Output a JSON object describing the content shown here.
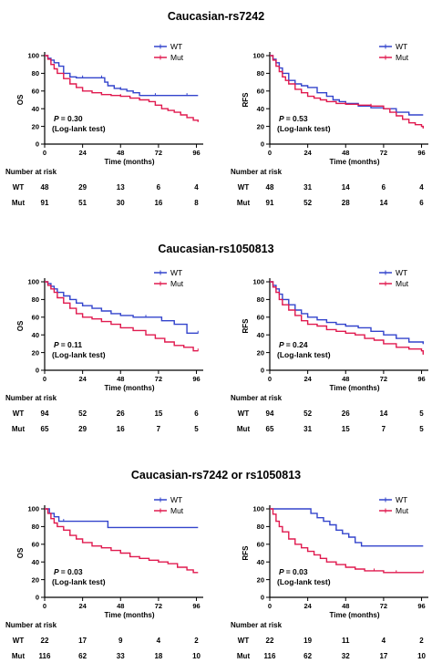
{
  "sections": [
    {
      "title": "Caucasian-rs7242"
    },
    {
      "title": "Caucasian-rs1050813"
    },
    {
      "title": "Caucasian-rs7242 or rs1050813"
    }
  ],
  "labels": {
    "p_label": "P",
    "test_label": "(Log-lank test)",
    "number_at_risk": "Number at risk",
    "wt": "WT",
    "mut": "Mut"
  },
  "colors": {
    "wt": "#3344cc",
    "mut": "#e01a4f"
  },
  "chart_data": [
    {
      "type": "line",
      "section": 0,
      "ylabel": "OS",
      "xlabel": "Time (months)",
      "xticks": [
        0,
        24,
        48,
        72,
        96
      ],
      "yticks": [
        0,
        20,
        40,
        60,
        80,
        100
      ],
      "xlim": [
        0,
        98
      ],
      "ylim": [
        0,
        100
      ],
      "p_value": "= 0.30",
      "legend_position": "top-right",
      "series": [
        {
          "name": "WT",
          "x": [
            0,
            2,
            4,
            6,
            9,
            12,
            16,
            20,
            24,
            30,
            36,
            38,
            40,
            44,
            48,
            52,
            56,
            60,
            70,
            80,
            90,
            97
          ],
          "y": [
            100,
            97,
            95,
            92,
            88,
            80,
            76,
            75,
            75,
            75,
            75,
            70,
            66,
            63,
            62,
            60,
            58,
            55,
            55,
            55,
            55,
            55
          ]
        },
        {
          "name": "Mut",
          "x": [
            0,
            2,
            4,
            6,
            8,
            12,
            16,
            20,
            24,
            30,
            36,
            42,
            48,
            54,
            60,
            66,
            70,
            74,
            78,
            82,
            86,
            90,
            94,
            97
          ],
          "y": [
            100,
            96,
            90,
            85,
            80,
            74,
            68,
            64,
            60,
            58,
            56,
            55,
            54,
            52,
            50,
            48,
            44,
            40,
            38,
            36,
            33,
            30,
            27,
            25
          ]
        }
      ],
      "risk_table": {
        "times": [
          0,
          24,
          48,
          72,
          96
        ],
        "WT": [
          48,
          29,
          13,
          6,
          4
        ],
        "Mut": [
          91,
          51,
          30,
          16,
          8
        ]
      }
    },
    {
      "type": "line",
      "section": 0,
      "ylabel": "RFS",
      "xlabel": "Time (months)",
      "xticks": [
        0,
        24,
        48,
        72,
        96
      ],
      "yticks": [
        0,
        20,
        40,
        60,
        80,
        100
      ],
      "xlim": [
        0,
        98
      ],
      "ylim": [
        0,
        100
      ],
      "p_value": "= 0.53",
      "legend_position": "top-right",
      "series": [
        {
          "name": "WT",
          "x": [
            0,
            2,
            4,
            6,
            8,
            12,
            16,
            20,
            24,
            30,
            36,
            40,
            44,
            48,
            56,
            64,
            72,
            80,
            88,
            97
          ],
          "y": [
            100,
            96,
            92,
            86,
            80,
            72,
            68,
            66,
            64,
            58,
            54,
            50,
            48,
            46,
            43,
            41,
            40,
            36,
            33,
            33
          ]
        },
        {
          "name": "Mut",
          "x": [
            0,
            2,
            4,
            6,
            8,
            10,
            12,
            16,
            20,
            24,
            28,
            32,
            36,
            42,
            48,
            56,
            64,
            72,
            76,
            80,
            84,
            88,
            92,
            96,
            97
          ],
          "y": [
            100,
            95,
            88,
            82,
            76,
            72,
            68,
            62,
            58,
            54,
            52,
            50,
            48,
            46,
            45,
            44,
            43,
            40,
            36,
            32,
            28,
            24,
            22,
            20,
            18
          ]
        }
      ],
      "risk_table": {
        "times": [
          0,
          24,
          48,
          72,
          96
        ],
        "WT": [
          48,
          31,
          14,
          6,
          4
        ],
        "Mut": [
          91,
          52,
          28,
          14,
          6
        ]
      }
    },
    {
      "type": "line",
      "section": 1,
      "ylabel": "OS",
      "xlabel": "Time (months)",
      "xticks": [
        0,
        24,
        48,
        72,
        96
      ],
      "yticks": [
        0,
        20,
        40,
        60,
        80,
        100
      ],
      "xlim": [
        0,
        98
      ],
      "ylim": [
        0,
        100
      ],
      "p_value": "= 0.11",
      "legend_position": "top-right",
      "series": [
        {
          "name": "WT",
          "x": [
            0,
            2,
            4,
            6,
            8,
            12,
            16,
            20,
            24,
            30,
            36,
            42,
            48,
            56,
            64,
            74,
            82,
            90,
            97
          ],
          "y": [
            100,
            98,
            95,
            92,
            88,
            84,
            80,
            76,
            73,
            70,
            67,
            64,
            62,
            60,
            60,
            56,
            52,
            42,
            42
          ]
        },
        {
          "name": "Mut",
          "x": [
            0,
            2,
            4,
            6,
            8,
            12,
            16,
            20,
            24,
            30,
            36,
            42,
            48,
            56,
            64,
            70,
            76,
            82,
            88,
            94,
            97
          ],
          "y": [
            100,
            96,
            92,
            88,
            82,
            76,
            70,
            64,
            60,
            58,
            55,
            52,
            48,
            45,
            40,
            36,
            32,
            28,
            26,
            22,
            22
          ]
        }
      ],
      "risk_table": {
        "times": [
          0,
          24,
          48,
          72,
          96
        ],
        "WT": [
          94,
          52,
          26,
          15,
          6
        ],
        "Mut": [
          65,
          29,
          16,
          7,
          5
        ]
      }
    },
    {
      "type": "line",
      "section": 1,
      "ylabel": "RFS",
      "xlabel": "Time (months)",
      "xticks": [
        0,
        24,
        48,
        72,
        96
      ],
      "yticks": [
        0,
        20,
        40,
        60,
        80,
        100
      ],
      "xlim": [
        0,
        98
      ],
      "ylim": [
        0,
        100
      ],
      "p_value": "= 0.24",
      "legend_position": "top-right",
      "series": [
        {
          "name": "WT",
          "x": [
            0,
            2,
            4,
            6,
            8,
            12,
            16,
            20,
            24,
            30,
            36,
            42,
            48,
            56,
            64,
            72,
            80,
            88,
            97
          ],
          "y": [
            100,
            96,
            92,
            86,
            80,
            74,
            68,
            64,
            60,
            57,
            54,
            52,
            50,
            48,
            44,
            40,
            36,
            32,
            30
          ]
        },
        {
          "name": "Mut",
          "x": [
            0,
            2,
            4,
            6,
            8,
            12,
            16,
            20,
            24,
            30,
            36,
            42,
            48,
            54,
            60,
            66,
            72,
            80,
            88,
            96,
            97
          ],
          "y": [
            100,
            94,
            88,
            80,
            74,
            68,
            62,
            56,
            52,
            50,
            46,
            44,
            42,
            40,
            36,
            34,
            30,
            26,
            24,
            22,
            18
          ]
        }
      ],
      "risk_table": {
        "times": [
          0,
          24,
          48,
          72,
          96
        ],
        "WT": [
          94,
          52,
          26,
          14,
          5
        ],
        "Mut": [
          65,
          31,
          15,
          7,
          5
        ]
      }
    },
    {
      "type": "line",
      "section": 2,
      "ylabel": "OS",
      "xlabel": "Time (months)",
      "xticks": [
        0,
        24,
        48,
        72,
        96
      ],
      "yticks": [
        0,
        20,
        40,
        60,
        80,
        100
      ],
      "xlim": [
        0,
        98
      ],
      "ylim": [
        0,
        100
      ],
      "p_value": "= 0.03",
      "legend_position": "top-right",
      "series": [
        {
          "name": "WT",
          "x": [
            0,
            3,
            6,
            9,
            12,
            36,
            40,
            97
          ],
          "y": [
            100,
            95,
            91,
            86,
            86,
            86,
            79,
            79
          ]
        },
        {
          "name": "Mut",
          "x": [
            0,
            2,
            4,
            6,
            8,
            12,
            16,
            20,
            24,
            30,
            36,
            42,
            48,
            54,
            60,
            66,
            72,
            78,
            84,
            90,
            94,
            97
          ],
          "y": [
            100,
            95,
            89,
            84,
            80,
            76,
            70,
            66,
            62,
            58,
            56,
            53,
            50,
            46,
            44,
            42,
            40,
            38,
            34,
            31,
            28,
            28
          ]
        }
      ],
      "risk_table": {
        "times": [
          0,
          24,
          48,
          72,
          96
        ],
        "WT": [
          22,
          17,
          9,
          4,
          2
        ],
        "Mut": [
          116,
          62,
          33,
          18,
          10
        ]
      }
    },
    {
      "type": "line",
      "section": 2,
      "ylabel": "RFS",
      "xlabel": "Time (months)",
      "xticks": [
        0,
        24,
        48,
        72,
        96
      ],
      "yticks": [
        0,
        20,
        40,
        60,
        80,
        100
      ],
      "xlim": [
        0,
        98
      ],
      "ylim": [
        0,
        100
      ],
      "p_value": "= 0.03",
      "legend_position": "top-right",
      "series": [
        {
          "name": "WT",
          "x": [
            0,
            20,
            26,
            30,
            34,
            38,
            42,
            46,
            50,
            54,
            58,
            97
          ],
          "y": [
            100,
            100,
            95,
            90,
            86,
            82,
            76,
            72,
            68,
            62,
            58,
            58
          ]
        },
        {
          "name": "Mut",
          "x": [
            0,
            2,
            4,
            6,
            8,
            12,
            16,
            20,
            24,
            28,
            32,
            36,
            42,
            48,
            54,
            60,
            66,
            72,
            80,
            88,
            97
          ],
          "y": [
            100,
            94,
            86,
            80,
            74,
            66,
            60,
            56,
            52,
            48,
            44,
            40,
            37,
            34,
            32,
            30,
            30,
            28,
            28,
            28,
            28
          ]
        }
      ],
      "risk_table": {
        "times": [
          0,
          24,
          48,
          72,
          96
        ],
        "WT": [
          22,
          19,
          11,
          4,
          2
        ],
        "Mut": [
          116,
          62,
          32,
          17,
          10
        ]
      }
    }
  ]
}
